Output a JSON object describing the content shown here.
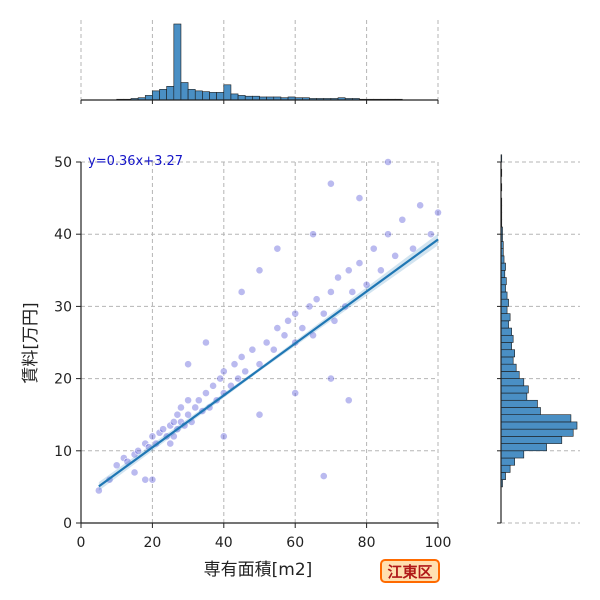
{
  "chart_data": {
    "type": "scatter",
    "xlabel": "専有面積[m2]",
    "ylabel": "賃料[万円]",
    "xlim": [
      0,
      100
    ],
    "ylim": [
      0,
      50
    ],
    "xticks": [
      0,
      20,
      40,
      60,
      80,
      100
    ],
    "yticks": [
      0,
      10,
      20,
      30,
      40,
      50
    ],
    "grid": true,
    "annotation": "y=0.36x+3.27",
    "regression": {
      "slope": 0.36,
      "intercept": 3.27,
      "x_range": [
        5,
        100
      ]
    },
    "badge": "江東区",
    "colors": {
      "points": "#3a3ad0",
      "regression": "#1f77b4",
      "hist": "#4a8fc4"
    },
    "scatter_points": [
      [
        10,
        8
      ],
      [
        12,
        9
      ],
      [
        13,
        8.5
      ],
      [
        15,
        9.5
      ],
      [
        16,
        10
      ],
      [
        18,
        11
      ],
      [
        19,
        10.5
      ],
      [
        20,
        12
      ],
      [
        21,
        11
      ],
      [
        22,
        12.5
      ],
      [
        23,
        13
      ],
      [
        24,
        12
      ],
      [
        25,
        13.5
      ],
      [
        25,
        11
      ],
      [
        26,
        14
      ],
      [
        26,
        12
      ],
      [
        27,
        13
      ],
      [
        27,
        15
      ],
      [
        28,
        14
      ],
      [
        28,
        16
      ],
      [
        29,
        13.5
      ],
      [
        30,
        15
      ],
      [
        30,
        17
      ],
      [
        31,
        14
      ],
      [
        32,
        16
      ],
      [
        33,
        17
      ],
      [
        34,
        15.5
      ],
      [
        35,
        18
      ],
      [
        36,
        16
      ],
      [
        37,
        19
      ],
      [
        38,
        17
      ],
      [
        39,
        20
      ],
      [
        40,
        18
      ],
      [
        40,
        21
      ],
      [
        42,
        19
      ],
      [
        43,
        22
      ],
      [
        44,
        20
      ],
      [
        45,
        23
      ],
      [
        46,
        21
      ],
      [
        48,
        24
      ],
      [
        50,
        22
      ],
      [
        52,
        25
      ],
      [
        54,
        24
      ],
      [
        55,
        27
      ],
      [
        57,
        26
      ],
      [
        58,
        28
      ],
      [
        60,
        25
      ],
      [
        60,
        29
      ],
      [
        62,
        27
      ],
      [
        64,
        30
      ],
      [
        65,
        26
      ],
      [
        66,
        31
      ],
      [
        68,
        29
      ],
      [
        70,
        32
      ],
      [
        71,
        28
      ],
      [
        72,
        34
      ],
      [
        74,
        30
      ],
      [
        75,
        35
      ],
      [
        76,
        32
      ],
      [
        78,
        36
      ],
      [
        80,
        33
      ],
      [
        82,
        38
      ],
      [
        84,
        35
      ],
      [
        86,
        40
      ],
      [
        88,
        37
      ],
      [
        90,
        42
      ],
      [
        93,
        38
      ],
      [
        95,
        44
      ],
      [
        98,
        40
      ],
      [
        100,
        43
      ],
      [
        70,
        47
      ],
      [
        86,
        50
      ],
      [
        45,
        32
      ],
      [
        50,
        35
      ],
      [
        55,
        38
      ],
      [
        35,
        25
      ],
      [
        30,
        22
      ],
      [
        65,
        40
      ],
      [
        78,
        45
      ],
      [
        20,
        6
      ],
      [
        18,
        6
      ],
      [
        15,
        7
      ],
      [
        40,
        12
      ],
      [
        50,
        15
      ],
      [
        60,
        18
      ],
      [
        70,
        20
      ],
      [
        75,
        17
      ],
      [
        68,
        6.5
      ],
      [
        5,
        4.5
      ],
      [
        8,
        6
      ]
    ],
    "x_marginal": {
      "bin_width": 2,
      "bins": [
        {
          "x0": 10,
          "count": 1
        },
        {
          "x0": 12,
          "count": 1
        },
        {
          "x0": 14,
          "count": 2
        },
        {
          "x0": 16,
          "count": 3
        },
        {
          "x0": 18,
          "count": 6
        },
        {
          "x0": 20,
          "count": 12
        },
        {
          "x0": 22,
          "count": 14
        },
        {
          "x0": 24,
          "count": 18
        },
        {
          "x0": 26,
          "count": 100
        },
        {
          "x0": 28,
          "count": 23
        },
        {
          "x0": 30,
          "count": 14
        },
        {
          "x0": 32,
          "count": 12
        },
        {
          "x0": 34,
          "count": 11
        },
        {
          "x0": 36,
          "count": 10
        },
        {
          "x0": 38,
          "count": 10
        },
        {
          "x0": 40,
          "count": 20
        },
        {
          "x0": 42,
          "count": 8
        },
        {
          "x0": 44,
          "count": 6
        },
        {
          "x0": 46,
          "count": 5
        },
        {
          "x0": 48,
          "count": 5
        },
        {
          "x0": 50,
          "count": 4
        },
        {
          "x0": 52,
          "count": 4
        },
        {
          "x0": 54,
          "count": 4
        },
        {
          "x0": 56,
          "count": 3
        },
        {
          "x0": 58,
          "count": 4
        },
        {
          "x0": 60,
          "count": 3
        },
        {
          "x0": 62,
          "count": 3
        },
        {
          "x0": 64,
          "count": 2
        },
        {
          "x0": 66,
          "count": 2
        },
        {
          "x0": 68,
          "count": 2
        },
        {
          "x0": 70,
          "count": 2
        },
        {
          "x0": 72,
          "count": 3
        },
        {
          "x0": 74,
          "count": 2
        },
        {
          "x0": 76,
          "count": 2
        },
        {
          "x0": 78,
          "count": 1
        },
        {
          "x0": 80,
          "count": 1
        },
        {
          "x0": 82,
          "count": 1
        },
        {
          "x0": 84,
          "count": 1
        },
        {
          "x0": 86,
          "count": 1
        },
        {
          "x0": 88,
          "count": 1
        }
      ]
    },
    "y_marginal": {
      "bin_width": 1,
      "bins": [
        {
          "y0": 5,
          "count": 2
        },
        {
          "y0": 6,
          "count": 6
        },
        {
          "y0": 7,
          "count": 12
        },
        {
          "y0": 8,
          "count": 18
        },
        {
          "y0": 9,
          "count": 30
        },
        {
          "y0": 10,
          "count": 60
        },
        {
          "y0": 11,
          "count": 80
        },
        {
          "y0": 12,
          "count": 95
        },
        {
          "y0": 13,
          "count": 100
        },
        {
          "y0": 14,
          "count": 92
        },
        {
          "y0": 15,
          "count": 52
        },
        {
          "y0": 16,
          "count": 48
        },
        {
          "y0": 17,
          "count": 34
        },
        {
          "y0": 18,
          "count": 36
        },
        {
          "y0": 19,
          "count": 30
        },
        {
          "y0": 20,
          "count": 24
        },
        {
          "y0": 21,
          "count": 20
        },
        {
          "y0": 22,
          "count": 16
        },
        {
          "y0": 23,
          "count": 18
        },
        {
          "y0": 24,
          "count": 14
        },
        {
          "y0": 25,
          "count": 16
        },
        {
          "y0": 26,
          "count": 14
        },
        {
          "y0": 27,
          "count": 10
        },
        {
          "y0": 28,
          "count": 12
        },
        {
          "y0": 29,
          "count": 8
        },
        {
          "y0": 30,
          "count": 10
        },
        {
          "y0": 31,
          "count": 8
        },
        {
          "y0": 32,
          "count": 6
        },
        {
          "y0": 33,
          "count": 7
        },
        {
          "y0": 34,
          "count": 5
        },
        {
          "y0": 35,
          "count": 6
        },
        {
          "y0": 36,
          "count": 4
        },
        {
          "y0": 37,
          "count": 3
        },
        {
          "y0": 38,
          "count": 3
        },
        {
          "y0": 39,
          "count": 2
        },
        {
          "y0": 40,
          "count": 2
        },
        {
          "y0": 41,
          "count": 1
        },
        {
          "y0": 42,
          "count": 1
        },
        {
          "y0": 43,
          "count": 1
        },
        {
          "y0": 44,
          "count": 1
        },
        {
          "y0": 46,
          "count": 1
        },
        {
          "y0": 48,
          "count": 1
        },
        {
          "y0": 50,
          "count": 1
        }
      ]
    }
  }
}
